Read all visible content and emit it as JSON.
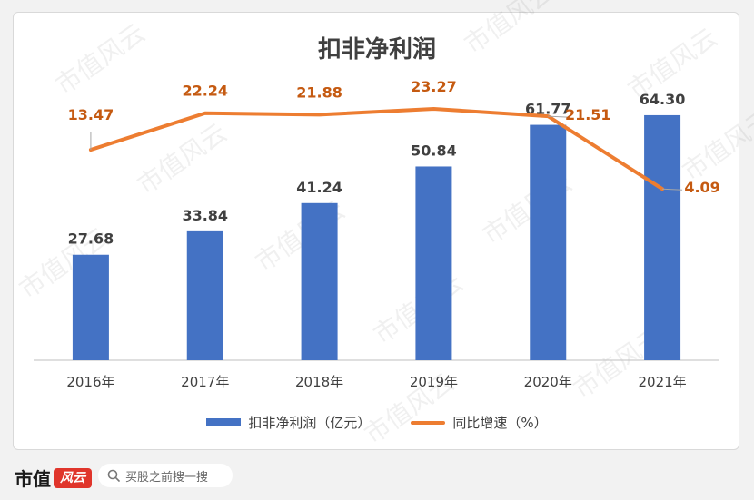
{
  "chart_data": {
    "title": "扣非净利润",
    "categories": [
      "2016年",
      "2017年",
      "2018年",
      "2019年",
      "2020年",
      "2021年"
    ],
    "series": [
      {
        "name": "扣非净利润（亿元）",
        "type": "bar",
        "color": "#4472c4",
        "values": [
          27.68,
          33.84,
          41.24,
          50.84,
          61.77,
          64.3
        ],
        "labels": [
          "27.68",
          "33.84",
          "41.24",
          "50.84",
          "61.77",
          "64.30"
        ]
      },
      {
        "name": "同比增速（%）",
        "type": "line",
        "color": "#ed7d31",
        "values": [
          13.47,
          22.24,
          21.88,
          23.27,
          21.51,
          4.09
        ],
        "labels": [
          "13.47",
          "22.24",
          "21.88",
          "23.27",
          "21.51",
          "4.09"
        ]
      }
    ],
    "legend_position": "bottom",
    "grid": false
  },
  "footer": {
    "brand_name": "市值",
    "brand_badge": "风云",
    "search_placeholder": "买股之前搜一搜"
  },
  "watermark": "市值风云",
  "colors": {
    "bar": "#4472c4",
    "line": "#ed7d31",
    "label_dark": "#404040",
    "label_orange": "#c55a11"
  },
  "icons": [
    "search-icon"
  ]
}
